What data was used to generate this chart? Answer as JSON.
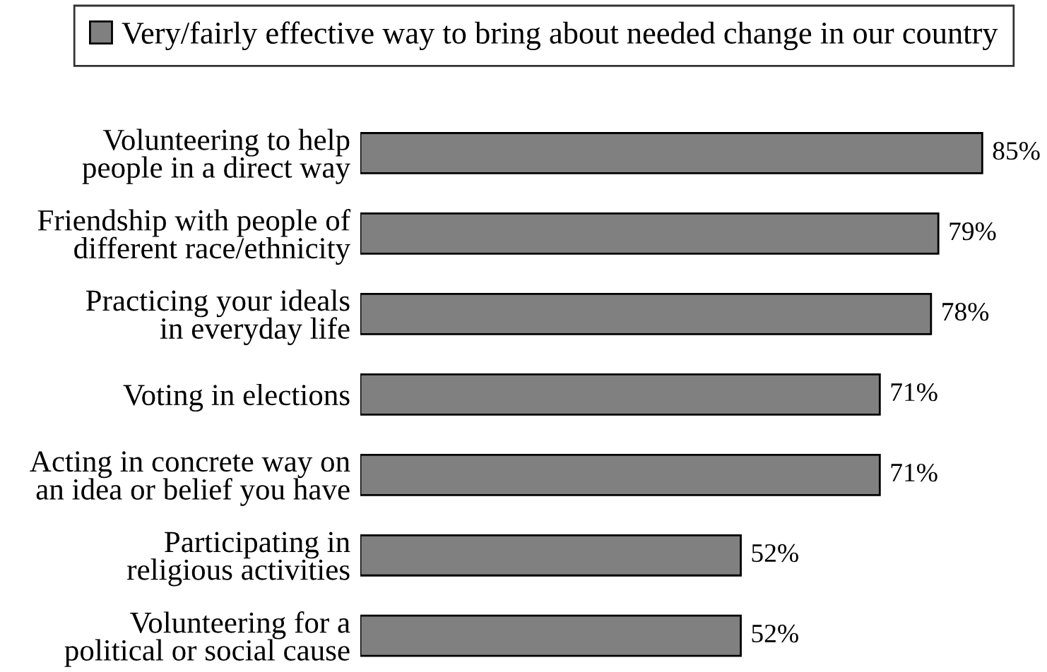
{
  "chart_data": {
    "type": "bar",
    "orientation": "horizontal",
    "categories": [
      "Volunteering to help\npeople in a direct way",
      "Friendship with people of\ndifferent race/ethnicity",
      "Practicing your ideals\nin everyday life",
      "Voting in elections",
      "Acting in concrete way on\nan idea or belief you have",
      "Participating in\nreligious activities",
      "Volunteering for a\npolitical or social cause"
    ],
    "series": [
      {
        "name": "Very/fairly effective way to bring about needed change in our country",
        "color": "#808080",
        "values": [
          85,
          79,
          78,
          71,
          71,
          52,
          52
        ],
        "value_labels": [
          "85%",
          "79%",
          "78%",
          "71%",
          "71%",
          "52%",
          "52%"
        ]
      }
    ],
    "legend": "top",
    "tick_labels": "y"
  }
}
